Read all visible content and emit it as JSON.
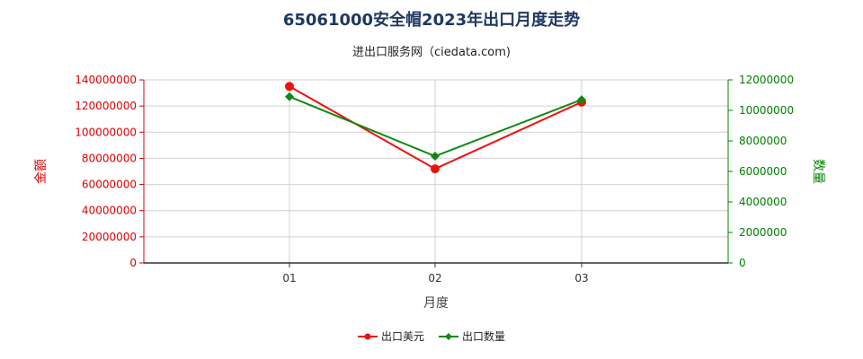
{
  "title": "65061000安全帽2023年出口月度走势",
  "subtitle": "进出口服务网（ciedata.com)",
  "colors": {
    "left_axis": "#e00000",
    "right_axis": "#008000",
    "series_amount": "#ee1111",
    "series_quantity": "#118811",
    "grid": "#d0d0d0",
    "title": "#1f3864"
  },
  "chart_data": {
    "type": "line",
    "title": "65061000安全帽2023年出口月度走势",
    "subtitle": "进出口服务网（ciedata.com)",
    "xlabel": "月度",
    "categories": [
      "01",
      "02",
      "03"
    ],
    "left_axis": {
      "label": "金额",
      "ylim": [
        0,
        140000000
      ],
      "ticks": [
        "0",
        "20000000",
        "40000000",
        "60000000",
        "80000000",
        "100000000",
        "120000000",
        "140000000"
      ]
    },
    "right_axis": {
      "label": "数量",
      "ylim": [
        0,
        12000000
      ],
      "ticks": [
        "0",
        "2000000",
        "4000000",
        "6000000",
        "8000000",
        "10000000",
        "12000000"
      ]
    },
    "series": [
      {
        "name": "出口美元",
        "axis": "left",
        "marker": "circle",
        "color": "#ee1111",
        "values": [
          135000000,
          72000000,
          123000000
        ]
      },
      {
        "name": "出口数量",
        "axis": "right",
        "marker": "diamond",
        "color": "#118811",
        "values": [
          10900000,
          7000000,
          10700000
        ]
      }
    ],
    "grid": true,
    "legend_position": "bottom-center"
  }
}
